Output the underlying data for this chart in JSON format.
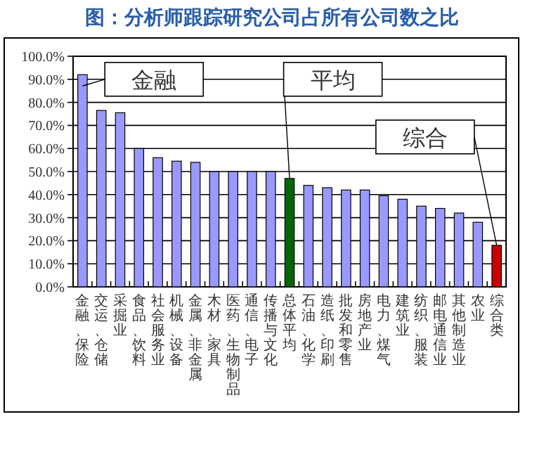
{
  "chart_data": {
    "type": "bar",
    "title": "图：分析师跟踪研究公司占所有公司数之比",
    "categories": [
      "金融、保险",
      "交运、仓储",
      "采掘业",
      "食品、饮料",
      "社会服务业",
      "机械、设备",
      "金属、非金属",
      "木材、家具",
      "医药、生物制品",
      "通信、电子",
      "传播与文化",
      "总体平均",
      "石油、化学",
      "造纸、印刷",
      "批发和零售",
      "房地产业",
      "电力、煤气",
      "建筑业",
      "纺织、服装",
      "邮电通信业",
      "其他制造业",
      "农业",
      "综合类"
    ],
    "values": [
      92,
      76.5,
      75.5,
      60,
      56,
      54.5,
      54,
      50,
      50,
      50,
      50,
      47,
      44,
      43,
      42,
      42,
      39.5,
      38,
      35,
      34,
      32,
      28,
      18
    ],
    "colors": [
      "#9999ff",
      "#9999ff",
      "#9999ff",
      "#9999ff",
      "#9999ff",
      "#9999ff",
      "#9999ff",
      "#9999ff",
      "#9999ff",
      "#9999ff",
      "#9999ff",
      "#006600",
      "#9999ff",
      "#9999ff",
      "#9999ff",
      "#9999ff",
      "#9999ff",
      "#9999ff",
      "#9999ff",
      "#9999ff",
      "#9999ff",
      "#9999ff",
      "#cc0000"
    ],
    "ylim": [
      0,
      100
    ],
    "yticks": [
      {
        "value": 0,
        "label": "0.0%"
      },
      {
        "value": 10,
        "label": "10.0%"
      },
      {
        "value": 20,
        "label": "20.0%"
      },
      {
        "value": 30,
        "label": "30.0%"
      },
      {
        "value": 40,
        "label": "40.0%"
      },
      {
        "value": 50,
        "label": "50.0%"
      },
      {
        "value": 60,
        "label": "60.0%"
      },
      {
        "value": 70,
        "label": "70.0%"
      },
      {
        "value": 80,
        "label": "80.0%"
      },
      {
        "value": 90,
        "label": "90.0%"
      },
      {
        "value": 100,
        "label": "100.0%"
      }
    ],
    "grid": "y",
    "annotations": [
      {
        "text": "金融",
        "x": "金融、保险",
        "y": 92
      },
      {
        "text": "平均",
        "x": "总体平均",
        "y": 47
      },
      {
        "text": "综合",
        "x": "综合类",
        "y": 18
      }
    ]
  }
}
